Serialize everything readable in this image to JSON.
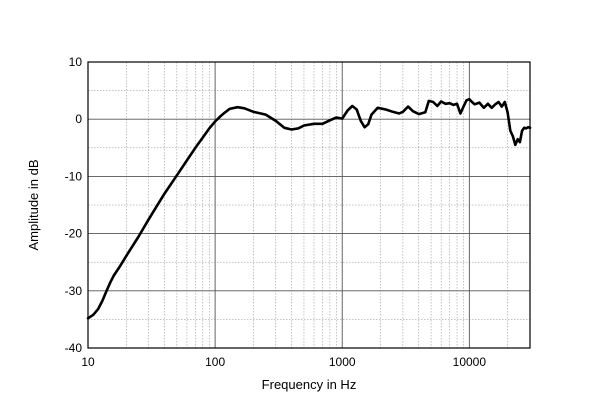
{
  "chart_data": {
    "type": "line",
    "title": "",
    "xlabel": "Frequency in Hz",
    "ylabel": "Amplitude in dB",
    "x_scale": "log",
    "xlim": [
      10,
      30000
    ],
    "ylim": [
      -40,
      10
    ],
    "x_ticks": [
      10,
      100,
      1000,
      10000
    ],
    "x_tick_labels": [
      "10",
      "100",
      "1000",
      "10000"
    ],
    "y_ticks": [
      10,
      0,
      -10,
      -20,
      -30,
      -40
    ],
    "y_tick_labels": [
      "10",
      "0",
      "-10",
      "-20",
      "-30",
      "-40"
    ],
    "grid": true,
    "legend": "none",
    "line_color": "#000000",
    "series": [
      {
        "points": [
          [
            10,
            -34.8
          ],
          [
            11,
            -34.2
          ],
          [
            12,
            -33.2
          ],
          [
            13,
            -31.7
          ],
          [
            14,
            -30.0
          ],
          [
            15,
            -28.5
          ],
          [
            16,
            -27.3
          ],
          [
            18,
            -25.6
          ],
          [
            20,
            -23.9
          ],
          [
            25,
            -20.5
          ],
          [
            30,
            -17.5
          ],
          [
            40,
            -13.0
          ],
          [
            50,
            -9.8
          ],
          [
            60,
            -7.2
          ],
          [
            70,
            -5.0
          ],
          [
            80,
            -3.2
          ],
          [
            90,
            -1.6
          ],
          [
            100,
            -0.4
          ],
          [
            110,
            0.5
          ],
          [
            120,
            1.2
          ],
          [
            130,
            1.8
          ],
          [
            150,
            2.1
          ],
          [
            170,
            1.9
          ],
          [
            200,
            1.3
          ],
          [
            250,
            0.8
          ],
          [
            300,
            -0.3
          ],
          [
            350,
            -1.5
          ],
          [
            400,
            -1.8
          ],
          [
            450,
            -1.6
          ],
          [
            500,
            -1.1
          ],
          [
            600,
            -0.8
          ],
          [
            700,
            -0.8
          ],
          [
            800,
            -0.2
          ],
          [
            900,
            0.3
          ],
          [
            1000,
            0.1
          ],
          [
            1100,
            1.5
          ],
          [
            1200,
            2.3
          ],
          [
            1300,
            1.7
          ],
          [
            1400,
            -0.3
          ],
          [
            1500,
            -1.4
          ],
          [
            1600,
            -0.9
          ],
          [
            1700,
            0.8
          ],
          [
            1900,
            2.0
          ],
          [
            2200,
            1.7
          ],
          [
            2500,
            1.3
          ],
          [
            2800,
            1.0
          ],
          [
            3000,
            1.3
          ],
          [
            3300,
            2.2
          ],
          [
            3600,
            1.4
          ],
          [
            4000,
            0.9
          ],
          [
            4500,
            1.2
          ],
          [
            4800,
            3.2
          ],
          [
            5200,
            3.0
          ],
          [
            5600,
            2.3
          ],
          [
            6000,
            3.1
          ],
          [
            6500,
            2.7
          ],
          [
            7000,
            2.8
          ],
          [
            7500,
            2.5
          ],
          [
            8000,
            2.7
          ],
          [
            8500,
            1.0
          ],
          [
            9000,
            2.2
          ],
          [
            9500,
            3.3
          ],
          [
            10000,
            3.5
          ],
          [
            10500,
            3.0
          ],
          [
            11000,
            2.6
          ],
          [
            12000,
            2.9
          ],
          [
            13000,
            2.0
          ],
          [
            14000,
            2.7
          ],
          [
            15000,
            2.0
          ],
          [
            16000,
            2.6
          ],
          [
            17000,
            3.0
          ],
          [
            18000,
            2.2
          ],
          [
            19000,
            3.0
          ],
          [
            20000,
            1.2
          ],
          [
            21000,
            -2.0
          ],
          [
            22000,
            -3.0
          ],
          [
            23000,
            -4.5
          ],
          [
            24000,
            -3.5
          ],
          [
            25000,
            -4.0
          ],
          [
            26000,
            -2.0
          ],
          [
            27000,
            -1.5
          ],
          [
            28000,
            -1.6
          ],
          [
            29000,
            -1.4
          ],
          [
            30000,
            -1.5
          ]
        ]
      }
    ]
  }
}
